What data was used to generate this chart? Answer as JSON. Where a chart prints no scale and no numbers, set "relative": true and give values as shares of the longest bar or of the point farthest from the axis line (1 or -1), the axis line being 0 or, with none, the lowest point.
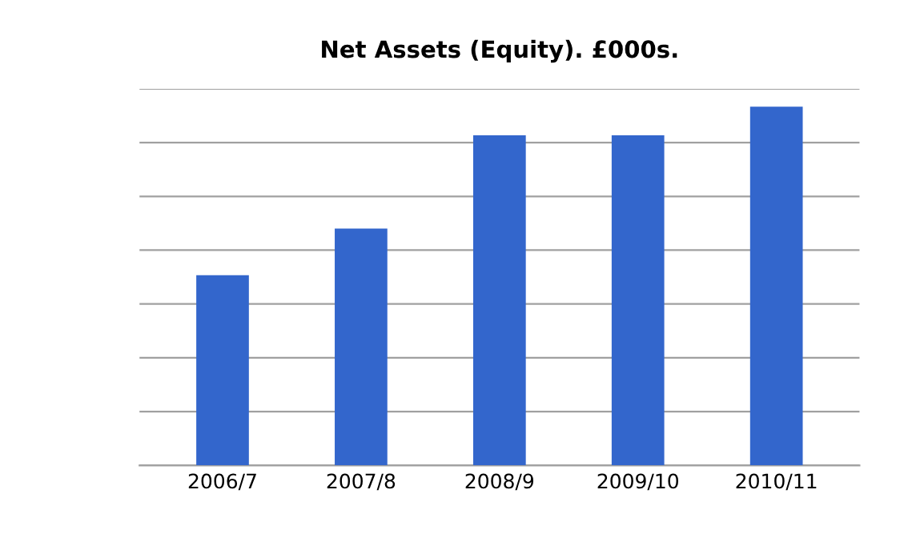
{
  "chart_data": {
    "type": "bar",
    "title": "Net Assets (Equity). £000s.",
    "categories": [
      "2006/7",
      "2007/8",
      "2008/9",
      "2009/10",
      "2010/11"
    ],
    "values": [
      0.53,
      0.66,
      0.92,
      0.92,
      1
    ],
    "color": "#3366cc",
    "relative": true,
    "grid": "y",
    "legend": false
  }
}
